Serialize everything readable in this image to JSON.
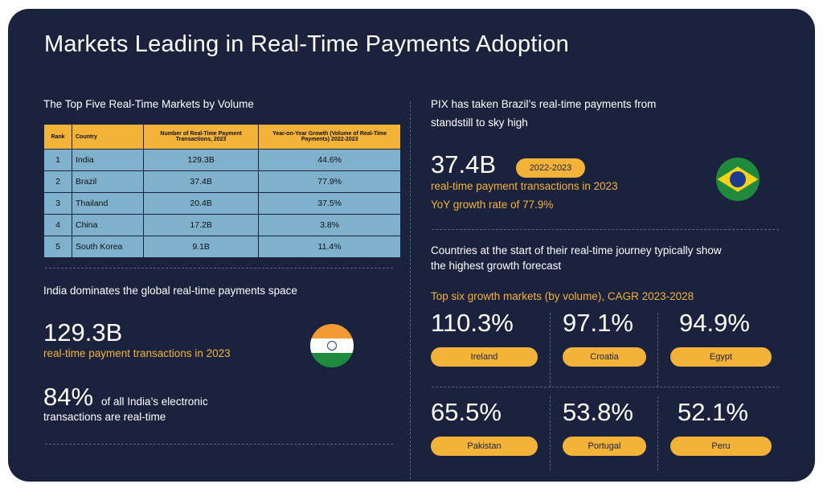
{
  "title": "Markets Leading in Real-Time Payments Adoption",
  "left": {
    "table_title": "The Top Five Real-Time Markets by Volume",
    "table": {
      "headers": [
        "Rank",
        "Country",
        "Number of Real-Time Payment Transactions, 2023",
        "Year-on-Year Growth (Volume of Real-Time Payments) 2022-2023"
      ],
      "rows": [
        [
          "1",
          "India",
          "129.3B",
          "44.6%"
        ],
        [
          "2",
          "Brazil",
          "37.4B",
          "77.9%"
        ],
        [
          "3",
          "Thailand",
          "20.4B",
          "37.5%"
        ],
        [
          "4",
          "China",
          "17.2B",
          "3.8%"
        ],
        [
          "5",
          "South Korea",
          "9.1B",
          "11.4%"
        ]
      ]
    },
    "india_heading": "India dominates the global real-time payments space",
    "india_big": "129.3B",
    "india_sub": "real-time payment transactions in 2023",
    "india_pct": "84%",
    "india_pct_text1": "of all India’s electronic",
    "india_pct_text2": "transactions are real-time"
  },
  "right": {
    "brazil_heading1": "PIX has taken Brazil’s real-time payments from",
    "brazil_heading2": "standstill to sky high",
    "brazil_big": "37.4B",
    "brazil_pill": "2022-2023",
    "brazil_line1": "real-time payment transactions in 2023",
    "brazil_line2": "YoY growth rate of 77.9%",
    "growth_heading1": "Countries at the start of their real-time journey typically show",
    "growth_heading2": "the highest growth forecast",
    "growth_sub": "Top six growth markets (by volume), CAGR 2023-2028",
    "markets": [
      {
        "value": "110.3%",
        "country": "Ireland"
      },
      {
        "value": "97.1%",
        "country": "Croatia"
      },
      {
        "value": "94.9%",
        "country": "Egypt"
      },
      {
        "value": "65.5%",
        "country": "Pakistan"
      },
      {
        "value": "53.8%",
        "country": "Portugal"
      },
      {
        "value": "52.1%",
        "country": "Peru"
      }
    ]
  },
  "colors": {
    "background": "#1a223d",
    "accent": "#f3b339",
    "table_cell": "#7fb1cc"
  },
  "icons": [
    "india-flag-icon",
    "brazil-flag-icon"
  ]
}
